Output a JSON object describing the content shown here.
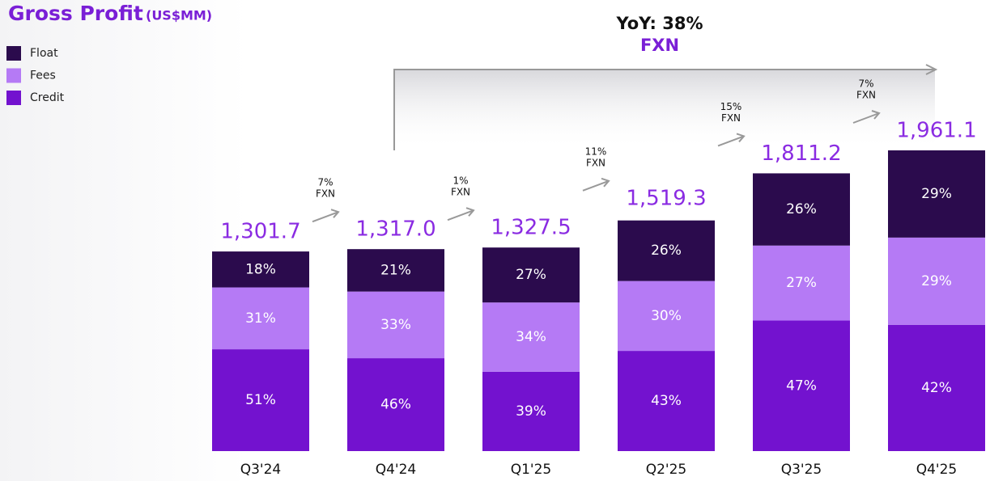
{
  "chart_data": {
    "type": "stacked_bar",
    "title": "Gross Profit",
    "unit": "(US$MM)",
    "categories": [
      "Q3'24",
      "Q4'24",
      "Q1'25",
      "Q2'25",
      "Q3'25",
      "Q4'25"
    ],
    "series": [
      {
        "name": "Float",
        "color": "#2b0b4d",
        "values": [
          18,
          21,
          27,
          26,
          26,
          29
        ],
        "value_labels": [
          "18%",
          "21%",
          "27%",
          "26%",
          "26%",
          "29%"
        ]
      },
      {
        "name": "Fees",
        "color": "#b57af5",
        "values": [
          31,
          33,
          34,
          30,
          27,
          29
        ],
        "value_labels": [
          "31%",
          "33%",
          "34%",
          "30%",
          "27%",
          "29%"
        ]
      },
      {
        "name": "Credit",
        "color": "#7312cf",
        "values": [
          51,
          46,
          39,
          43,
          47,
          42
        ],
        "value_labels": [
          "51%",
          "46%",
          "39%",
          "43%",
          "47%",
          "42%"
        ]
      }
    ],
    "totals": {
      "values": [
        1301.7,
        1317.0,
        1327.5,
        1519.3,
        1811.2,
        1961.1
      ],
      "value_labels": [
        "1,301.7",
        "1,317.0",
        "1,327.5",
        "1,519.3",
        "1,811.2",
        "1,961.1"
      ]
    },
    "growth": [
      "7%",
      "1%",
      "11%",
      "15%",
      "7%"
    ],
    "growth_basis": "FXN",
    "yoy": {
      "label": "YoY: 38%",
      "basis": "FXN"
    }
  }
}
